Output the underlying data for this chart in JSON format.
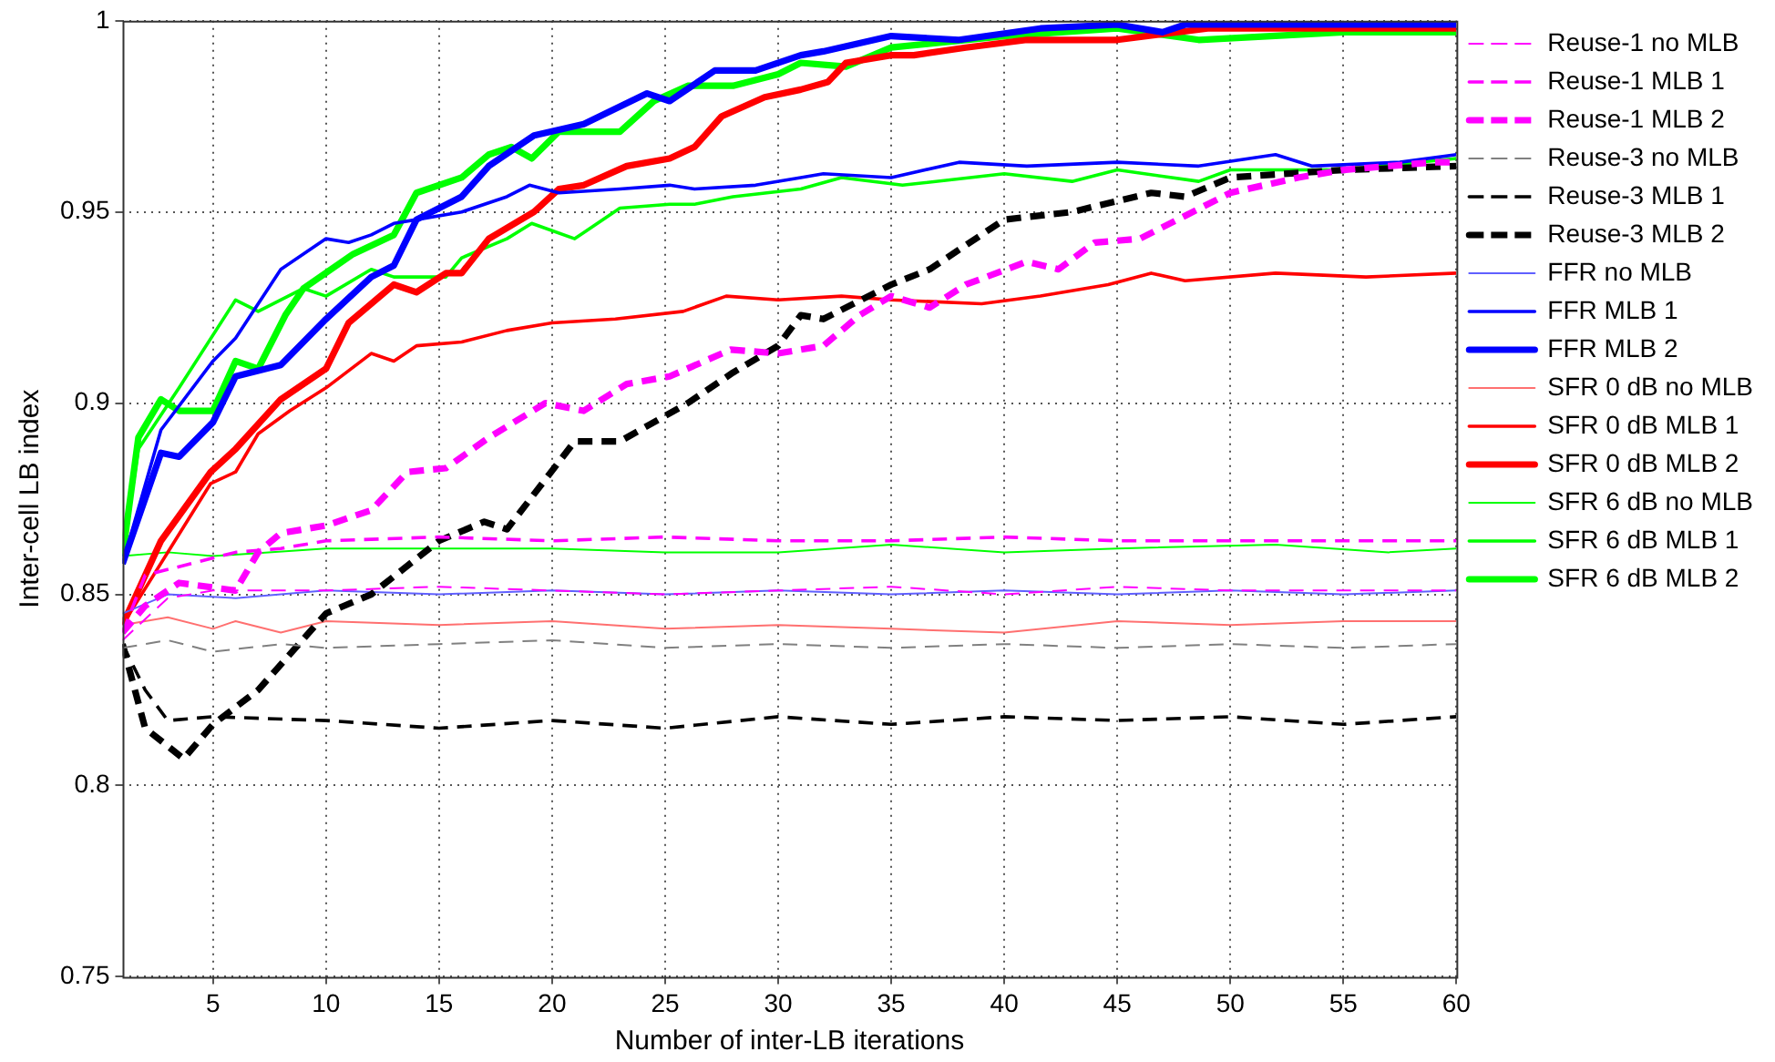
{
  "chart_data": {
    "type": "line",
    "xlabel": "Number of inter-LB iterations",
    "ylabel": "Inter-cell LB index",
    "xlim": [
      1,
      60
    ],
    "xticks": [
      5,
      10,
      15,
      20,
      25,
      30,
      35,
      40,
      45,
      50,
      55,
      60
    ],
    "ylim": [
      0.75,
      1
    ],
    "yticks": [
      0.75,
      0.8,
      0.85,
      0.9,
      0.95,
      1
    ],
    "grid": true,
    "legend": "right",
    "marker": "none",
    "series": [
      {
        "name": "Reuse-1 no MLB",
        "color": "#ff00ff",
        "line_style": "dashed",
        "x": [
          1,
          3,
          5,
          10,
          15,
          20,
          25,
          30,
          35,
          40,
          45,
          50,
          55,
          60
        ],
        "values": [
          0.838,
          0.849,
          0.851,
          0.851,
          0.852,
          0.851,
          0.85,
          0.851,
          0.852,
          0.85,
          0.852,
          0.851,
          0.851,
          0.851
        ]
      },
      {
        "name": "Reuse-1 MLB 1",
        "color": "#ff00ff",
        "line_style": "dashed",
        "x": [
          1,
          2,
          4,
          6,
          8,
          10,
          15,
          20,
          25,
          30,
          35,
          40,
          45,
          50,
          55,
          60
        ],
        "values": [
          0.84,
          0.855,
          0.858,
          0.861,
          0.862,
          0.864,
          0.865,
          0.864,
          0.865,
          0.864,
          0.864,
          0.865,
          0.864,
          0.864,
          0.864,
          0.864
        ]
      },
      {
        "name": "Reuse-1 MLB 2",
        "color": "#ff00ff",
        "line_style": "dashed",
        "x": [
          1,
          2,
          3.5,
          6,
          7,
          8,
          10,
          12,
          13.6,
          15.3,
          17.2,
          19.7,
          21.4,
          23.3,
          25.2,
          27.9,
          30,
          32,
          33.6,
          35,
          36.7,
          38.3,
          41,
          42.4,
          44,
          46,
          48,
          50,
          53,
          55,
          59,
          60
        ],
        "values": [
          0.84,
          0.847,
          0.853,
          0.851,
          0.861,
          0.866,
          0.868,
          0.872,
          0.882,
          0.883,
          0.891,
          0.9,
          0.898,
          0.905,
          0.907,
          0.914,
          0.913,
          0.915,
          0.923,
          0.928,
          0.925,
          0.931,
          0.937,
          0.935,
          0.942,
          0.943,
          0.949,
          0.955,
          0.959,
          0.961,
          0.963,
          0.963
        ]
      },
      {
        "name": "Reuse-3 no MLB",
        "color": "#808080",
        "line_style": "dashed",
        "x": [
          1,
          3,
          5,
          8,
          10,
          15,
          20,
          25,
          30,
          35,
          40,
          45,
          50,
          55,
          60
        ],
        "values": [
          0.836,
          0.838,
          0.835,
          0.837,
          0.836,
          0.837,
          0.838,
          0.836,
          0.837,
          0.836,
          0.837,
          0.836,
          0.837,
          0.836,
          0.837
        ]
      },
      {
        "name": "Reuse-3 MLB 1",
        "color": "#000000",
        "line_style": "dashed",
        "x": [
          1,
          2,
          3,
          5,
          10,
          15,
          20,
          25,
          30,
          35,
          40,
          45,
          50,
          55,
          60
        ],
        "values": [
          0.837,
          0.825,
          0.817,
          0.818,
          0.817,
          0.815,
          0.817,
          0.815,
          0.818,
          0.816,
          0.818,
          0.817,
          0.818,
          0.816,
          0.818
        ]
      },
      {
        "name": "Reuse-3 MLB 2",
        "color": "#000000",
        "line_style": "dashed",
        "x": [
          1,
          2,
          3.7,
          5,
          7,
          10,
          12,
          15,
          17,
          18,
          21,
          23,
          26,
          28,
          30,
          31,
          32,
          35,
          36.7,
          40,
          43,
          46.5,
          48,
          50,
          55,
          60
        ],
        "values": [
          0.837,
          0.815,
          0.807,
          0.816,
          0.825,
          0.845,
          0.85,
          0.864,
          0.869,
          0.867,
          0.89,
          0.89,
          0.9,
          0.908,
          0.915,
          0.923,
          0.922,
          0.931,
          0.935,
          0.948,
          0.95,
          0.955,
          0.954,
          0.959,
          0.961,
          0.962
        ]
      },
      {
        "name": "FFR no MLB",
        "color": "#6060ff",
        "line_style": "solid",
        "x": [
          1,
          3,
          6,
          10,
          15,
          20,
          25,
          30,
          35,
          40,
          45,
          50,
          55,
          60
        ],
        "values": [
          0.845,
          0.85,
          0.849,
          0.851,
          0.85,
          0.851,
          0.85,
          0.851,
          0.85,
          0.851,
          0.85,
          0.851,
          0.85,
          0.851
        ]
      },
      {
        "name": "FFR MLB 1",
        "color": "#0000ff",
        "line_style": "solid",
        "x": [
          1,
          2.7,
          5,
          6,
          8,
          10,
          11,
          12,
          13,
          14,
          16,
          18,
          19,
          20.3,
          23,
          25.2,
          26.3,
          29,
          31,
          32,
          35,
          38,
          41,
          45,
          48.6,
          52,
          53.6,
          57.5,
          60
        ],
        "values": [
          0.858,
          0.893,
          0.911,
          0.917,
          0.935,
          0.943,
          0.942,
          0.944,
          0.947,
          0.948,
          0.95,
          0.954,
          0.957,
          0.955,
          0.956,
          0.957,
          0.956,
          0.957,
          0.959,
          0.96,
          0.959,
          0.963,
          0.962,
          0.963,
          0.962,
          0.965,
          0.962,
          0.963,
          0.965
        ]
      },
      {
        "name": "FFR MLB 2",
        "color": "#0000ff",
        "line_style": "solid",
        "x": [
          1,
          2.7,
          3.5,
          5,
          6,
          8,
          10,
          12,
          13,
          14,
          16,
          17.2,
          19.2,
          21.4,
          24.2,
          25.2,
          27.2,
          29,
          31,
          32,
          35,
          38,
          41.6,
          45,
          47,
          48,
          55,
          60
        ],
        "values": [
          0.858,
          0.887,
          0.886,
          0.895,
          0.907,
          0.91,
          0.922,
          0.933,
          0.936,
          0.948,
          0.954,
          0.962,
          0.97,
          0.973,
          0.981,
          0.979,
          0.987,
          0.987,
          0.991,
          0.992,
          0.996,
          0.995,
          0.998,
          0.999,
          0.997,
          0.999,
          0.999,
          0.999
        ]
      },
      {
        "name": "SFR 0 dB no MLB",
        "color": "#ff7070",
        "line_style": "solid",
        "x": [
          1,
          3,
          5,
          6,
          8,
          10,
          15,
          20,
          25,
          30,
          35,
          40,
          45,
          50,
          55,
          60
        ],
        "values": [
          0.842,
          0.844,
          0.841,
          0.843,
          0.84,
          0.843,
          0.842,
          0.843,
          0.841,
          0.842,
          0.841,
          0.84,
          0.843,
          0.842,
          0.843,
          0.843
        ]
      },
      {
        "name": "SFR 0 dB MLB 1",
        "color": "#ff0000",
        "line_style": "solid",
        "x": [
          1,
          4.9,
          6,
          7,
          8.4,
          10,
          12,
          13,
          14,
          16,
          18,
          20,
          22.8,
          25.8,
          27.7,
          30,
          32.8,
          35,
          39,
          41.6,
          44.6,
          46.5,
          48,
          52,
          56,
          60
        ],
        "values": [
          0.842,
          0.879,
          0.882,
          0.892,
          0.898,
          0.904,
          0.913,
          0.911,
          0.915,
          0.916,
          0.919,
          0.921,
          0.922,
          0.924,
          0.928,
          0.927,
          0.928,
          0.927,
          0.926,
          0.928,
          0.931,
          0.934,
          0.932,
          0.934,
          0.933,
          0.934
        ]
      },
      {
        "name": "SFR 0 dB MLB 2",
        "color": "#ff0000",
        "line_style": "solid",
        "x": [
          1,
          2.7,
          4.9,
          6,
          8,
          10,
          11,
          13,
          14,
          15.3,
          16,
          17.2,
          19.2,
          20.3,
          21.4,
          23.3,
          25.2,
          26.3,
          27.5,
          29.4,
          31,
          32.2,
          33,
          35,
          36,
          38.3,
          41,
          45,
          49,
          55,
          60
        ],
        "values": [
          0.842,
          0.864,
          0.882,
          0.888,
          0.901,
          0.909,
          0.921,
          0.931,
          0.929,
          0.934,
          0.934,
          0.943,
          0.95,
          0.956,
          0.957,
          0.962,
          0.964,
          0.967,
          0.975,
          0.98,
          0.982,
          0.984,
          0.989,
          0.991,
          0.991,
          0.993,
          0.995,
          0.995,
          0.998,
          0.998,
          0.998
        ]
      },
      {
        "name": "SFR 6 dB no MLB",
        "color": "#00ff00",
        "line_style": "solid",
        "x": [
          1,
          3,
          5,
          10,
          15,
          20,
          25,
          30,
          35,
          40,
          45,
          52,
          57,
          60
        ],
        "values": [
          0.86,
          0.861,
          0.86,
          0.862,
          0.862,
          0.862,
          0.861,
          0.861,
          0.863,
          0.861,
          0.862,
          0.863,
          0.861,
          0.862
        ]
      },
      {
        "name": "SFR 6 dB MLB 1",
        "color": "#00ff00",
        "line_style": "solid",
        "x": [
          1,
          1.7,
          3.5,
          6,
          7,
          9,
          10,
          12,
          13,
          15.3,
          16,
          18,
          19.1,
          21,
          23,
          25.2,
          26.3,
          28,
          31,
          32.8,
          35.5,
          40,
          43,
          45,
          48.6,
          50,
          55,
          60
        ],
        "values": [
          0.86,
          0.888,
          0.904,
          0.927,
          0.924,
          0.93,
          0.928,
          0.935,
          0.933,
          0.933,
          0.938,
          0.943,
          0.947,
          0.943,
          0.951,
          0.952,
          0.952,
          0.954,
          0.956,
          0.959,
          0.957,
          0.96,
          0.958,
          0.961,
          0.958,
          0.961,
          0.961,
          0.964
        ]
      },
      {
        "name": "SFR 6 dB MLB 2",
        "color": "#00ff00",
        "line_style": "solid",
        "x": [
          1,
          1.7,
          2.7,
          3.5,
          5,
          6,
          7,
          8.2,
          9,
          11.2,
          13,
          14,
          16,
          17.2,
          18.2,
          19.1,
          20.3,
          23,
          24.5,
          26,
          28,
          30,
          31,
          33,
          35,
          40,
          45,
          48.6,
          55,
          60
        ],
        "values": [
          0.86,
          0.891,
          0.901,
          0.898,
          0.898,
          0.911,
          0.909,
          0.923,
          0.93,
          0.939,
          0.944,
          0.955,
          0.959,
          0.965,
          0.967,
          0.964,
          0.971,
          0.971,
          0.979,
          0.983,
          0.983,
          0.986,
          0.989,
          0.988,
          0.993,
          0.996,
          0.998,
          0.995,
          0.997,
          0.997
        ]
      }
    ]
  }
}
